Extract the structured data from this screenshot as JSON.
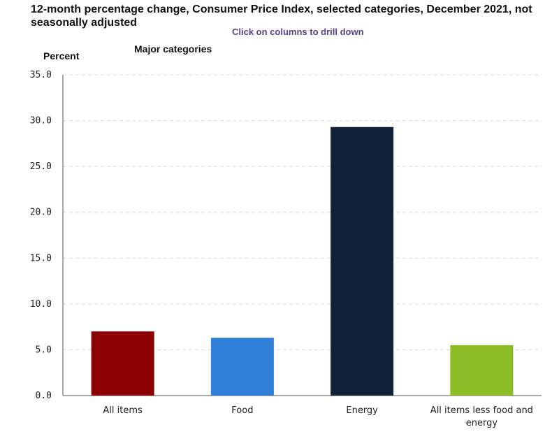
{
  "header": {
    "title": "12-month percentage change, Consumer Price Index, selected categories, December 2021, not seasonally adjusted",
    "hint": "Click on columns to drill down",
    "subtitle": "Major categories"
  },
  "chart_data": {
    "type": "bar",
    "title": "12-month percentage change, Consumer Price Index, selected categories, December 2021, not seasonally adjusted",
    "subtitle": "Major categories",
    "xlabel": "",
    "ylabel": "Percent",
    "ylim": [
      0,
      35
    ],
    "yticks": [
      "0.0",
      "5.0",
      "10.0",
      "15.0",
      "20.0",
      "25.0",
      "30.0",
      "35.0"
    ],
    "grid": true,
    "categories": [
      [
        "All items"
      ],
      [
        "Food"
      ],
      [
        "Energy"
      ],
      [
        "All items less food and",
        "energy"
      ]
    ],
    "values": [
      7.0,
      6.3,
      29.3,
      5.5
    ],
    "colors": [
      "#8b0000",
      "#2f7fd9",
      "#0f2238",
      "#8bbb25"
    ]
  }
}
